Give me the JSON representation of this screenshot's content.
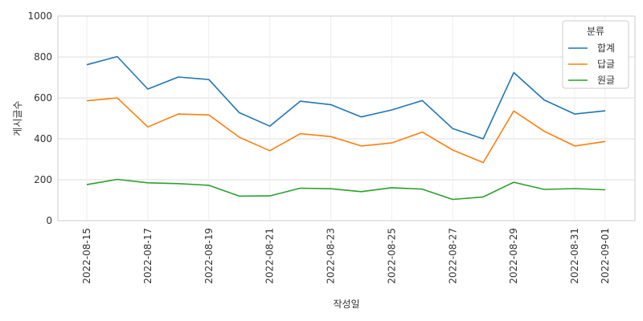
{
  "chart_data": {
    "type": "line",
    "title": "",
    "xlabel": "작성일",
    "ylabel": "게시글수",
    "ylim": [
      0,
      1000
    ],
    "yticks": [
      0,
      200,
      400,
      600,
      800,
      1000
    ],
    "x": [
      "2022-08-15",
      "2022-08-16",
      "2022-08-17",
      "2022-08-18",
      "2022-08-19",
      "2022-08-20",
      "2022-08-21",
      "2022-08-22",
      "2022-08-23",
      "2022-08-24",
      "2022-08-25",
      "2022-08-26",
      "2022-08-27",
      "2022-08-28",
      "2022-08-29",
      "2022-08-30",
      "2022-08-31",
      "2022-09-01"
    ],
    "xtick_labels": [
      "2022-08-15",
      "2022-08-17",
      "2022-08-19",
      "2022-08-21",
      "2022-08-23",
      "2022-08-25",
      "2022-08-27",
      "2022-08-29",
      "2022-08-31",
      "2022-09-01"
    ],
    "grid": true,
    "legend": {
      "title": "분류",
      "position": "top-right"
    },
    "series": [
      {
        "name": "합계",
        "color": "#1f77b4",
        "values": [
          762,
          802,
          643,
          702,
          690,
          528,
          462,
          584,
          567,
          507,
          541,
          587,
          450,
          400,
          724,
          590,
          521,
          537
        ]
      },
      {
        "name": "답글",
        "color": "#ff7f0e",
        "values": [
          586,
          600,
          458,
          521,
          517,
          408,
          342,
          425,
          411,
          365,
          380,
          433,
          345,
          284,
          536,
          437,
          365,
          387
        ]
      },
      {
        "name": "원글",
        "color": "#2ca02c",
        "values": [
          176,
          202,
          185,
          181,
          173,
          120,
          121,
          159,
          156,
          142,
          161,
          154,
          104,
          116,
          188,
          153,
          157,
          151
        ]
      }
    ]
  }
}
